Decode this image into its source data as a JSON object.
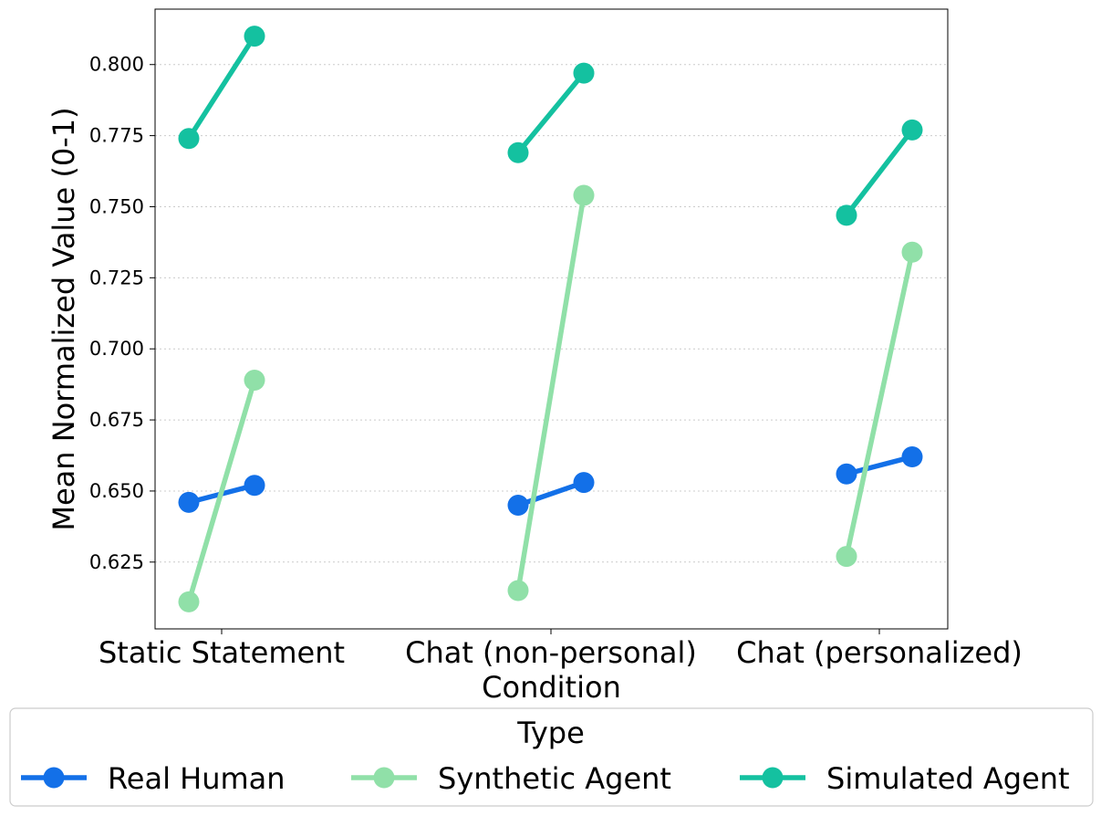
{
  "chart_data": {
    "type": "line",
    "title": "",
    "xlabel": "Condition",
    "ylabel": "Mean Normalized Value (0-1)",
    "categories": [
      "Static Statement",
      "Chat (non-personal)",
      "Chat (personalized)"
    ],
    "yticks": [
      "0.625",
      "0.650",
      "0.675",
      "0.700",
      "0.725",
      "0.750",
      "0.775",
      "0.800"
    ],
    "ylim": [
      0.6015,
      0.8195
    ],
    "grid": "horizontal dotted",
    "legend": {
      "title": "Type",
      "placement": "bottom"
    },
    "series": [
      {
        "name": "Real Human",
        "color": "#1370e8",
        "pairs": [
          [
            0.646,
            0.652
          ],
          [
            0.645,
            0.653
          ],
          [
            0.656,
            0.662
          ]
        ]
      },
      {
        "name": "Synthetic Agent",
        "color": "#90e0a8",
        "pairs": [
          [
            0.611,
            0.689
          ],
          [
            0.615,
            0.754
          ],
          [
            0.627,
            0.734
          ]
        ]
      },
      {
        "name": "Simulated Agent",
        "color": "#14c1a0",
        "pairs": [
          [
            0.774,
            0.81
          ],
          [
            0.769,
            0.797
          ],
          [
            0.747,
            0.777
          ]
        ]
      }
    ]
  }
}
